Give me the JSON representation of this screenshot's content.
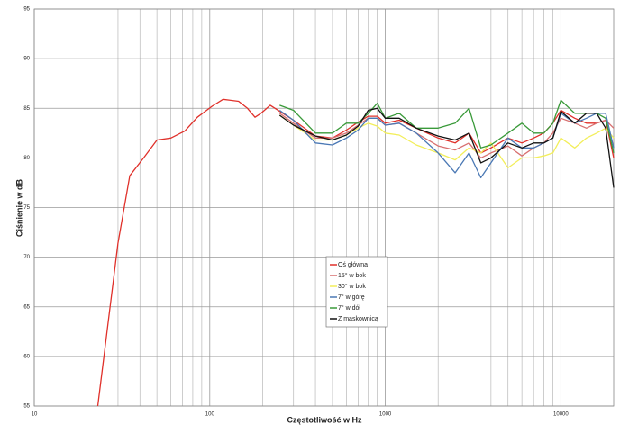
{
  "chart_data": {
    "type": "line",
    "x_label": "Częstotliwość w Hz",
    "y_label": "Ciśnienie w dB",
    "x_scale": "log",
    "xlim": [
      10,
      20000
    ],
    "ylim": [
      55,
      95
    ],
    "xticks": [
      10,
      100,
      1000,
      10000
    ],
    "x_minor_grid": [
      20,
      30,
      40,
      50,
      60,
      70,
      80,
      90,
      200,
      300,
      400,
      500,
      600,
      700,
      800,
      900,
      2000,
      3000,
      4000,
      5000,
      6000,
      7000,
      8000,
      9000
    ],
    "yticks": [
      55,
      60,
      65,
      70,
      75,
      80,
      85,
      90,
      95
    ],
    "grid": true,
    "legend": "center",
    "series": [
      {
        "name": "Oś główna",
        "color": "#e0302a",
        "x": [
          23,
          30,
          35,
          42,
          50,
          60,
          72,
          85,
          103,
          119,
          146,
          164,
          181,
          196,
          221,
          250,
          300,
          400,
          500,
          600,
          700,
          800,
          900,
          1000,
          1200,
          1500,
          2000,
          2500,
          3000,
          3500,
          4000,
          5000,
          6000,
          7000,
          8000,
          9000,
          10000,
          12000,
          14000,
          16000,
          18000,
          20000
        ],
        "values": [
          55,
          71.4,
          78.2,
          80,
          81.8,
          82,
          82.7,
          84.1,
          85.2,
          85.9,
          85.7,
          85,
          84.1,
          84.5,
          85.3,
          84.7,
          83.8,
          82.2,
          82,
          82.8,
          83.6,
          84.2,
          84.2,
          83.5,
          83.8,
          83,
          82,
          81.5,
          82.5,
          80.5,
          81,
          82,
          81.5,
          82,
          82.5,
          83.5,
          84.8,
          84,
          83.5,
          83.5,
          83.8,
          80
        ]
      },
      {
        "name": "15° w bok",
        "color": "#d87070",
        "x": [
          250,
          300,
          400,
          500,
          600,
          700,
          800,
          900,
          1000,
          1200,
          1500,
          2000,
          2500,
          3000,
          3500,
          4000,
          5000,
          6000,
          7000,
          8000,
          9000,
          10000,
          12000,
          14000,
          16000,
          18000,
          20000
        ],
        "values": [
          84.5,
          83.5,
          82,
          82,
          82.5,
          83.3,
          84,
          84,
          83.3,
          83.5,
          82.5,
          81.2,
          80.8,
          81.5,
          80,
          80.5,
          81.2,
          80.2,
          81,
          81.5,
          82.5,
          84,
          83.5,
          83,
          83.5,
          83.8,
          83
        ]
      },
      {
        "name": "30° w bok",
        "color": "#f2ee5a",
        "x": [
          250,
          300,
          400,
          500,
          600,
          700,
          800,
          900,
          1000,
          1200,
          1500,
          2000,
          2500,
          3000,
          3500,
          4000,
          5000,
          6000,
          7000,
          8000,
          9000,
          10000,
          12000,
          14000,
          16000,
          18000,
          20000
        ],
        "values": [
          84.3,
          83.3,
          81.8,
          81.8,
          82.3,
          83,
          83.5,
          83.2,
          82.5,
          82.3,
          81.3,
          80.5,
          79.8,
          81,
          80.5,
          81.5,
          79,
          80,
          80,
          80.2,
          80.5,
          82,
          81,
          82,
          82.5,
          83,
          82
        ]
      },
      {
        "name": "7° w górę",
        "color": "#4a78b4",
        "x": [
          250,
          300,
          400,
          500,
          600,
          700,
          800,
          900,
          1000,
          1200,
          1500,
          2000,
          2500,
          3000,
          3500,
          4000,
          5000,
          6000,
          7000,
          8000,
          9000,
          10000,
          12000,
          14000,
          16000,
          18000,
          20000
        ],
        "values": [
          84.8,
          83.8,
          81.5,
          81.3,
          82,
          82.8,
          84,
          84,
          83.3,
          83.5,
          82.5,
          80.5,
          78.5,
          80.5,
          78,
          79.5,
          82,
          81,
          81,
          81.5,
          82,
          84.5,
          83.5,
          84,
          84.5,
          84.5,
          81
        ]
      },
      {
        "name": "7° w dół",
        "color": "#3a9a3a",
        "x": [
          250,
          300,
          400,
          500,
          600,
          700,
          800,
          900,
          1000,
          1200,
          1500,
          2000,
          2500,
          3000,
          3500,
          4000,
          5000,
          6000,
          7000,
          8000,
          9000,
          10000,
          12000,
          14000,
          16000,
          18000,
          20000
        ],
        "values": [
          85.3,
          84.8,
          82.5,
          82.5,
          83.5,
          83.5,
          84.5,
          85.5,
          84,
          84.5,
          83,
          83,
          83.5,
          85,
          81,
          81.3,
          82.5,
          83.5,
          82.5,
          82.5,
          83.5,
          85.8,
          84.5,
          84.5,
          84.5,
          84,
          80.5
        ]
      },
      {
        "name": "Z maskownicą",
        "color": "#111111",
        "x": [
          250,
          300,
          400,
          500,
          600,
          700,
          800,
          900,
          1000,
          1200,
          1500,
          2000,
          2500,
          3000,
          3500,
          4000,
          5000,
          6000,
          7000,
          8000,
          9000,
          10000,
          12000,
          14000,
          16000,
          18000,
          20000
        ],
        "values": [
          84.3,
          83.3,
          82.2,
          81.8,
          82.3,
          83.2,
          84.8,
          85,
          84,
          84,
          83,
          82.2,
          81.8,
          82.5,
          79.5,
          80,
          81.5,
          81,
          81.5,
          81.5,
          82,
          84.7,
          83.5,
          84.5,
          84.5,
          83,
          77
        ]
      }
    ]
  }
}
